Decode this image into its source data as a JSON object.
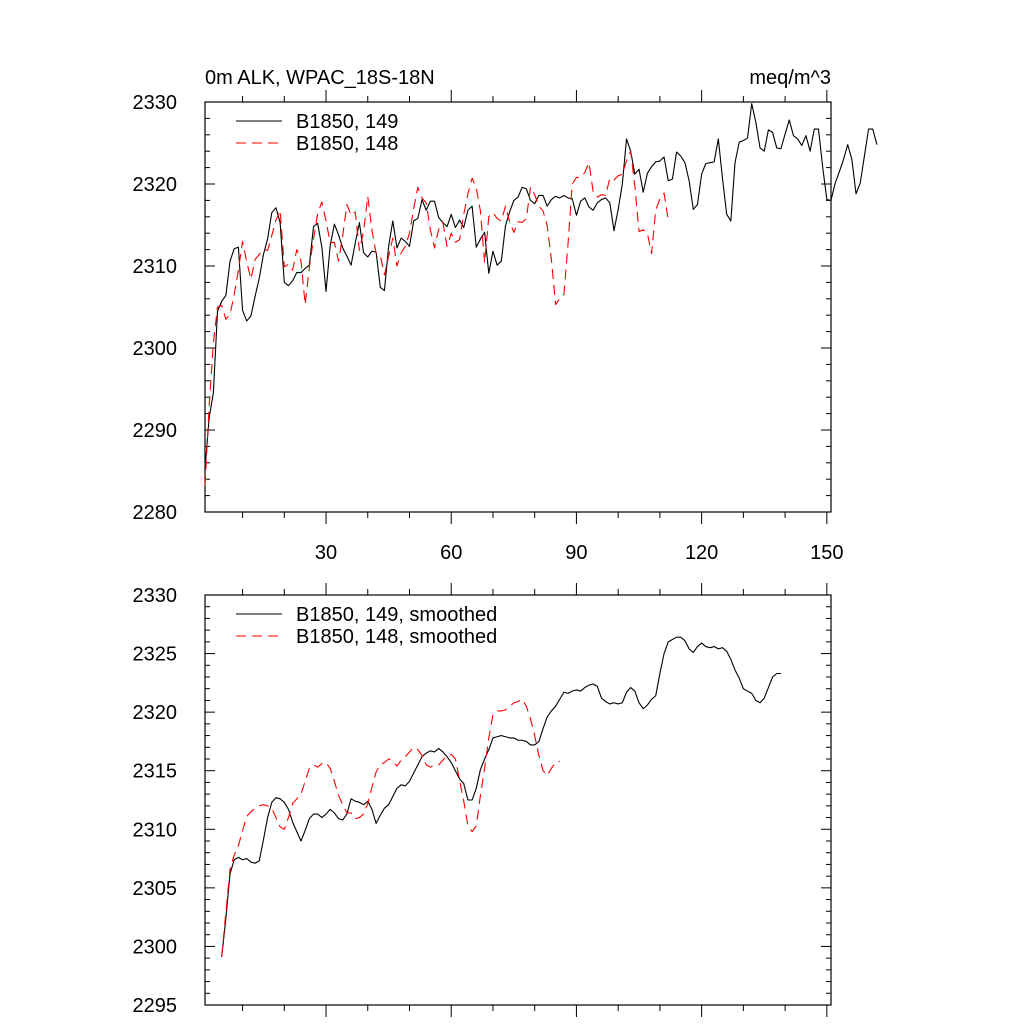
{
  "chart_data": [
    {
      "type": "line",
      "title": "0m ALK, WPAC_18S-18N",
      "units": "meq/m^3",
      "xlabel": "",
      "ylabel": "",
      "xlim": [
        1,
        151
      ],
      "ylim": [
        2280,
        2330
      ],
      "x_ticks": [
        30,
        60,
        90,
        120,
        150
      ],
      "x_tick_labels": [
        "30",
        "60",
        "90",
        "120",
        "150"
      ],
      "y_ticks": [
        2280,
        2290,
        2300,
        2310,
        2320,
        2330
      ],
      "y_tick_labels": [
        "2280",
        "2290",
        "2300",
        "2310",
        "2320",
        "2330"
      ],
      "grid": false,
      "legend_position": "top-left",
      "series": [
        {
          "name": "B1850, 149",
          "color": "#000000",
          "dash": "solid",
          "x_start": 1,
          "values": [
            2285.3,
            2291.5,
            2294.5,
            2304.5,
            2305.7,
            2306.4,
            2310.6,
            2312.1,
            2312.3,
            2304.6,
            2303.3,
            2303.9,
            2306.3,
            2308.5,
            2311.4,
            2313.3,
            2316.5,
            2317.1,
            2315.3,
            2308.0,
            2307.6,
            2308.2,
            2309.2,
            2309.2,
            2309.7,
            2310.1,
            2314.8,
            2315.2,
            2312.3,
            2306.9,
            2312.5,
            2315.1,
            2313.8,
            2312.2,
            2311.2,
            2310.1,
            2312.8,
            2315.3,
            2311.6,
            2311.1,
            2311.8,
            2311.7,
            2307.4,
            2307.0,
            2312.4,
            2315.5,
            2312.2,
            2313.4,
            2313.0,
            2312.4,
            2315.5,
            2315.8,
            2318.1,
            2316.8,
            2317.9,
            2317.9,
            2315.9,
            2315.3,
            2314.8,
            2316.3,
            2314.7,
            2315.6,
            2314.7,
            2316.8,
            2317.3,
            2312.3,
            2313.3,
            2314.1,
            2309.1,
            2311.8,
            2310.1,
            2310.6,
            2314.9,
            2316.6,
            2318.0,
            2318.4,
            2319.6,
            2319.4,
            2318.0,
            2317.6,
            2318.6,
            2318.6,
            2317.3,
            2318.1,
            2318.5,
            2318.3,
            2318.6,
            2318.3,
            2318.2,
            2316.2,
            2317.9,
            2318.3,
            2317.2,
            2316.8,
            2317.7,
            2318.1,
            2318.3,
            2317.7,
            2314.3,
            2316.9,
            2320.0,
            2325.5,
            2324.0,
            2321.2,
            2321.8,
            2319.0,
            2321.3,
            2322.1,
            2322.7,
            2322.8,
            2323.3,
            2320.4,
            2320.6,
            2323.9,
            2323.4,
            2322.6,
            2320.4,
            2316.9,
            2317.5,
            2321.2,
            2322.5,
            2322.6,
            2322.7,
            2325.5,
            2320.7,
            2316.3,
            2315.5,
            2322.6,
            2325.1,
            2325.3,
            2325.6,
            2329.8,
            2327.5,
            2324.4,
            2324.0,
            2326.6,
            2326.3,
            2324.4,
            2324.3,
            2326.1,
            2327.8,
            2325.9,
            2325.5,
            2324.7,
            2325.9,
            2324.0,
            2326.7,
            2326.7,
            2322.1,
            2318.1,
            2318.0,
            2320.1,
            2321.5,
            2323.0,
            2324.8,
            2323.0,
            2318.8,
            2320.1,
            2323.4,
            2326.7,
            2326.7,
            2324.8
          ]
        },
        {
          "name": "B1850, 148",
          "color": "#ff0000",
          "dash": "dashed",
          "x_start": 1,
          "values": [
            2283.2,
            2293.0,
            2300.6,
            2305.0,
            2305.2,
            2303.5,
            2304.1,
            2306.5,
            2309.5,
            2313.0,
            2310.5,
            2308.4,
            2310.8,
            2311.4,
            2312.0,
            2311.9,
            2313.7,
            2315.6,
            2316.8,
            2309.9,
            2310.2,
            2309.5,
            2312.0,
            2310.6,
            2305.3,
            2309.8,
            2313.3,
            2316.4,
            2317.8,
            2315.5,
            2312.8,
            2312.9,
            2310.6,
            2313.7,
            2317.5,
            2316.2,
            2316.6,
            2311.9,
            2314.2,
            2318.5,
            2314.4,
            2311.5,
            2311.3,
            2308.9,
            2311.2,
            2313.4,
            2310.0,
            2311.6,
            2312.4,
            2314.0,
            2317.0,
            2319.6,
            2318.3,
            2317.7,
            2314.4,
            2312.2,
            2314.5,
            2315.3,
            2312.4,
            2314.0,
            2312.9,
            2313.2,
            2316.3,
            2318.8,
            2320.7,
            2319.5,
            2316.7,
            2310.4,
            2316.0,
            2316.5,
            2315.8,
            2315.5,
            2317.3,
            2315.4,
            2314.1,
            2315.4,
            2315.3,
            2315.8,
            2319.6,
            2318.7,
            2317.3,
            2316.7,
            2314.9,
            2310.8,
            2305.3,
            2306.0,
            2306.5,
            2312.8,
            2320.0,
            2320.8,
            2320.8,
            2321.4,
            2322.6,
            2319.1,
            2318.4,
            2318.7,
            2318.6,
            2320.7,
            2320.5,
            2321.0,
            2321.2,
            2322.8,
            2324.0,
            2319.7,
            2314.2,
            2314.4,
            2314.0,
            2311.5,
            2316.8,
            2318.2,
            2318.9,
            2315.6
          ]
        }
      ]
    },
    {
      "type": "line",
      "title": "",
      "xlabel": "",
      "ylabel": "",
      "xlim": [
        1,
        151
      ],
      "ylim": [
        2295,
        2330
      ],
      "x_ticks": [
        30,
        60,
        90,
        120,
        150
      ],
      "y_ticks": [
        2295,
        2300,
        2305,
        2310,
        2315,
        2320,
        2325,
        2330
      ],
      "y_tick_labels": [
        "2295",
        "2300",
        "2305",
        "2310",
        "2315",
        "2320",
        "2325",
        "2330"
      ],
      "grid": false,
      "legend_position": "top-left",
      "series": [
        {
          "name": "B1850, 149, smoothed",
          "color": "#000000",
          "dash": "solid",
          "x_start": 5,
          "values": [
            2299.1,
            2302.4,
            2306.2,
            2307.4,
            2307.6,
            2307.4,
            2307.5,
            2307.2,
            2307.1,
            2307.3,
            2309.1,
            2311.0,
            2312.3,
            2312.7,
            2312.6,
            2312.3,
            2311.7,
            2310.6,
            2309.8,
            2309.0,
            2309.9,
            2310.9,
            2311.3,
            2311.3,
            2311.0,
            2311.3,
            2311.7,
            2311.4,
            2310.9,
            2310.8,
            2311.3,
            2312.6,
            2312.4,
            2312.3,
            2312.1,
            2312.4,
            2311.7,
            2310.5,
            2311.2,
            2311.8,
            2312.1,
            2312.8,
            2313.5,
            2313.8,
            2313.7,
            2314.1,
            2314.8,
            2315.5,
            2316.2,
            2316.5,
            2316.7,
            2316.6,
            2316.9,
            2316.6,
            2316.2,
            2315.7,
            2315.0,
            2314.3,
            2313.9,
            2312.5,
            2312.5,
            2313.5,
            2315.1,
            2316.0,
            2316.8,
            2317.8,
            2317.9,
            2318.0,
            2317.9,
            2317.8,
            2317.8,
            2317.6,
            2317.6,
            2317.5,
            2317.2,
            2317.2,
            2317.5,
            2318.6,
            2319.6,
            2320.1,
            2320.5,
            2321.1,
            2321.7,
            2321.6,
            2321.8,
            2321.9,
            2321.8,
            2322.1,
            2322.3,
            2322.4,
            2322.2,
            2321.2,
            2320.9,
            2320.7,
            2320.8,
            2320.7,
            2320.8,
            2321.7,
            2322.1,
            2321.8,
            2320.8,
            2320.3,
            2320.6,
            2321.1,
            2321.4,
            2323.3,
            2325.0,
            2326.0,
            2326.2,
            2326.4,
            2326.4,
            2326.1,
            2325.4,
            2325.1,
            2325.6,
            2325.9,
            2325.6,
            2325.5,
            2325.6,
            2325.4,
            2325.5,
            2325.2,
            2324.5,
            2323.6,
            2322.9,
            2322.0,
            2321.8,
            2321.6,
            2321.0,
            2320.8,
            2321.2,
            2322.1,
            2323.0,
            2323.3,
            2323.3
          ]
        },
        {
          "name": "B1850, 148, smoothed",
          "color": "#ff0000",
          "dash": "dashed",
          "x_start": 5,
          "values": [
            2299.1,
            2302.9,
            2306.6,
            2307.8,
            2308.6,
            2309.9,
            2311.1,
            2311.5,
            2311.8,
            2312.0,
            2312.1,
            2312.0,
            2311.8,
            2311.0,
            2310.2,
            2310.0,
            2311.0,
            2312.2,
            2312.6,
            2313.0,
            2314.1,
            2315.2,
            2315.5,
            2315.3,
            2315.6,
            2315.7,
            2315.2,
            2314.1,
            2312.9,
            2312.1,
            2311.4,
            2311.4,
            2310.9,
            2311.0,
            2311.3,
            2312.2,
            2313.6,
            2314.9,
            2315.5,
            2315.7,
            2316.0,
            2315.8,
            2315.4,
            2315.9,
            2316.2,
            2316.6,
            2317.0,
            2316.8,
            2316.3,
            2315.5,
            2315.3,
            2315.5,
            2315.5,
            2315.9,
            2316.3,
            2316.4,
            2316.0,
            2314.2,
            2312.4,
            2310.3,
            2309.8,
            2310.3,
            2312.9,
            2315.2,
            2317.8,
            2319.8,
            2320.1,
            2320.1,
            2320.2,
            2320.5,
            2320.8,
            2320.9,
            2321.1,
            2320.5,
            2319.4,
            2318.0,
            2316.3,
            2315.0,
            2314.6,
            2315.2,
            2315.7,
            2315.8
          ]
        }
      ]
    }
  ]
}
